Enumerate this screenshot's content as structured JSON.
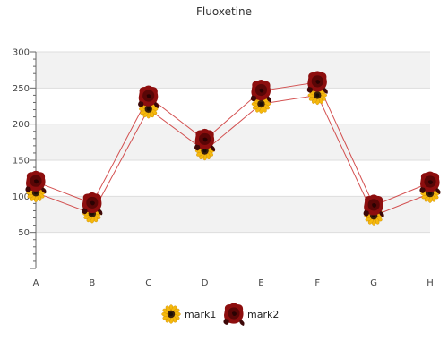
{
  "chart_data": {
    "type": "line",
    "title": "Fluoxetine",
    "categories": [
      "A",
      "B",
      "C",
      "D",
      "E",
      "F",
      "G",
      "H"
    ],
    "ylim": [
      0,
      300
    ],
    "yticks": [
      50,
      100,
      150,
      200,
      250,
      300
    ],
    "grid": true,
    "legend_position": "bottom",
    "series": [
      {
        "name": "mark1",
        "values": [
          105,
          76,
          221,
          163,
          228,
          240,
          73,
          104
        ],
        "marker": "sunflower-icon"
      },
      {
        "name": "mark2",
        "values": [
          120,
          90,
          238,
          178,
          246,
          258,
          87,
          119
        ],
        "marker": "rose-icon"
      }
    ],
    "colors": {
      "line": "#cc3333",
      "band": "#f2f2f2",
      "axis": "#666666",
      "grid": "#dddddd",
      "sunflower_petal": "#f5b80c",
      "sunflower_center": "#3a1f0a",
      "rose": "#9b1010",
      "rose_dark": "#4a0505"
    }
  }
}
